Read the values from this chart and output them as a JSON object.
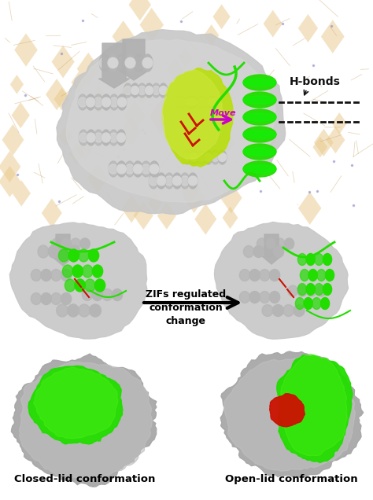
{
  "bg_color": "#ffffff",
  "panel_top_label": "H-bonds",
  "move_label": "Move",
  "arrow_label": "ZIFs regulated\nconformation\nchange",
  "label_bottom_left": "Closed-lid conformation",
  "label_bottom_right": "Open-lid conformation",
  "gray_light": "#d0d0d0",
  "gray_mid": "#b0b0b0",
  "gray_dark": "#888888",
  "green_color": "#22dd00",
  "yellow_green_color": "#b8e000",
  "red_color": "#cc1100",
  "mof_tan": "#e8c98a",
  "mof_line": "#c8a060",
  "move_color": "#cc00cc",
  "hbond_color": "#111111",
  "font_bold": true
}
